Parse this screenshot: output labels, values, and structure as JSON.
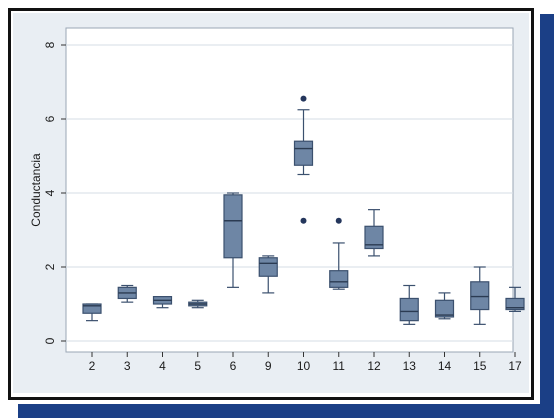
{
  "chart_data": {
    "type": "box",
    "title": "",
    "xlabel": "",
    "ylabel": "Conductancia",
    "ylim": [
      0,
      8
    ],
    "yticks": [
      0,
      2,
      4,
      6,
      8
    ],
    "grid": true,
    "colors": {
      "box_fill": "#6e86a5",
      "box_stroke": "#3b506e",
      "outlier": "#24365c",
      "plot_bg": "#ffffff",
      "panel_bg": "#e9eef3",
      "grid": "#d5dde6",
      "frame_accent": "#1b3f86"
    },
    "categories": [
      "2",
      "3",
      "4",
      "5",
      "6",
      "9",
      "10",
      "11",
      "12",
      "13",
      "14",
      "15",
      "17"
    ],
    "boxes": [
      {
        "category": "2",
        "min": 0.55,
        "q1": 0.75,
        "median": 0.95,
        "q3": 1.0,
        "max": 1.0,
        "outliers": []
      },
      {
        "category": "3",
        "min": 1.05,
        "q1": 1.15,
        "median": 1.3,
        "q3": 1.45,
        "max": 1.5,
        "outliers": []
      },
      {
        "category": "4",
        "min": 0.9,
        "q1": 1.0,
        "median": 1.1,
        "q3": 1.2,
        "max": 1.2,
        "outliers": []
      },
      {
        "category": "5",
        "min": 0.9,
        "q1": 0.95,
        "median": 1.0,
        "q3": 1.05,
        "max": 1.1,
        "outliers": []
      },
      {
        "category": "6",
        "min": 1.45,
        "q1": 2.25,
        "median": 3.25,
        "q3": 3.95,
        "max": 4.0,
        "outliers": []
      },
      {
        "category": "9",
        "min": 1.3,
        "q1": 1.75,
        "median": 2.1,
        "q3": 2.25,
        "max": 2.3,
        "outliers": []
      },
      {
        "category": "10",
        "min": 4.5,
        "q1": 4.75,
        "median": 5.2,
        "q3": 5.4,
        "max": 6.25,
        "outliers": [
          6.55,
          3.25
        ]
      },
      {
        "category": "11",
        "min": 1.4,
        "q1": 1.45,
        "median": 1.6,
        "q3": 1.9,
        "max": 2.65,
        "outliers": [
          3.25
        ]
      },
      {
        "category": "12",
        "min": 2.3,
        "q1": 2.5,
        "median": 2.6,
        "q3": 3.1,
        "max": 3.55,
        "outliers": []
      },
      {
        "category": "13",
        "min": 0.45,
        "q1": 0.55,
        "median": 0.8,
        "q3": 1.15,
        "max": 1.5,
        "outliers": []
      },
      {
        "category": "14",
        "min": 0.6,
        "q1": 0.65,
        "median": 0.7,
        "q3": 1.1,
        "max": 1.3,
        "outliers": []
      },
      {
        "category": "15",
        "min": 0.45,
        "q1": 0.85,
        "median": 1.2,
        "q3": 1.6,
        "max": 2.0,
        "outliers": []
      },
      {
        "category": "17",
        "min": 0.8,
        "q1": 0.85,
        "median": 0.9,
        "q3": 1.15,
        "max": 1.45,
        "outliers": []
      }
    ]
  }
}
